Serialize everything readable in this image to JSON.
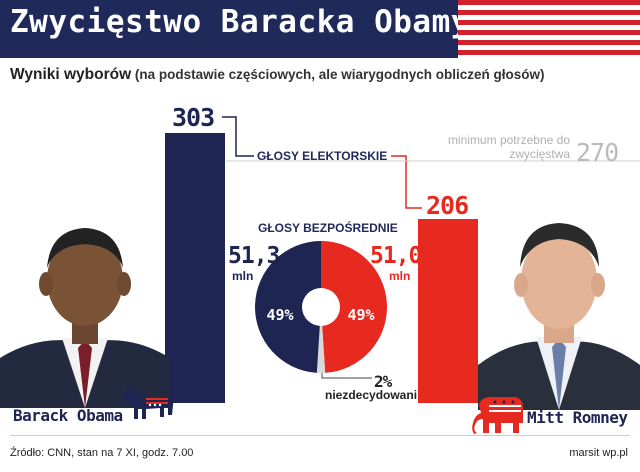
{
  "header": {
    "title": "Zwycięstwo Baracka Obamy"
  },
  "subtitle": {
    "main": "Wyniki wyborów",
    "note": " (na podstawie częściowych, ale wiarygodnych obliczeń głosów)"
  },
  "colors": {
    "obama": "#1e2553",
    "romney": "#e72a1f",
    "undecided": "#d9d9d9",
    "threshold": "#bbbbbb"
  },
  "chart_data": [
    {
      "type": "bar",
      "title": "GŁOSY ELEKTORSKIE",
      "categories": [
        "Barack Obama",
        "Mitt Romney"
      ],
      "values": [
        303,
        206
      ],
      "value_labels": [
        "303",
        "206"
      ],
      "threshold": {
        "value": 270,
        "label": "minimum potrzebne do zwycięstwa",
        "value_label": "270"
      },
      "ylim": [
        0,
        303
      ]
    },
    {
      "type": "pie",
      "title": "GŁOSY BEZPOŚREDNIE",
      "donut": true,
      "slices": [
        {
          "name": "Barack Obama",
          "percent": 49,
          "label": "49%",
          "votes_label": "51,3",
          "unit": "mln"
        },
        {
          "name": "Mitt Romney",
          "percent": 49,
          "label": "49%",
          "votes_label": "51,0",
          "unit": "mln"
        },
        {
          "name": "niezdecydowani",
          "percent": 2,
          "label": "2%"
        }
      ]
    }
  ],
  "candidates": {
    "obama": {
      "name": "Barack Obama",
      "party_icon": "donkey-icon"
    },
    "romney": {
      "name": "Mitt Romney",
      "party_icon": "elephant-icon"
    }
  },
  "footer": {
    "source": "Źródło: CNN, stan na 7 XI, godz. 7.00",
    "credit": "marsit wp.pl"
  }
}
